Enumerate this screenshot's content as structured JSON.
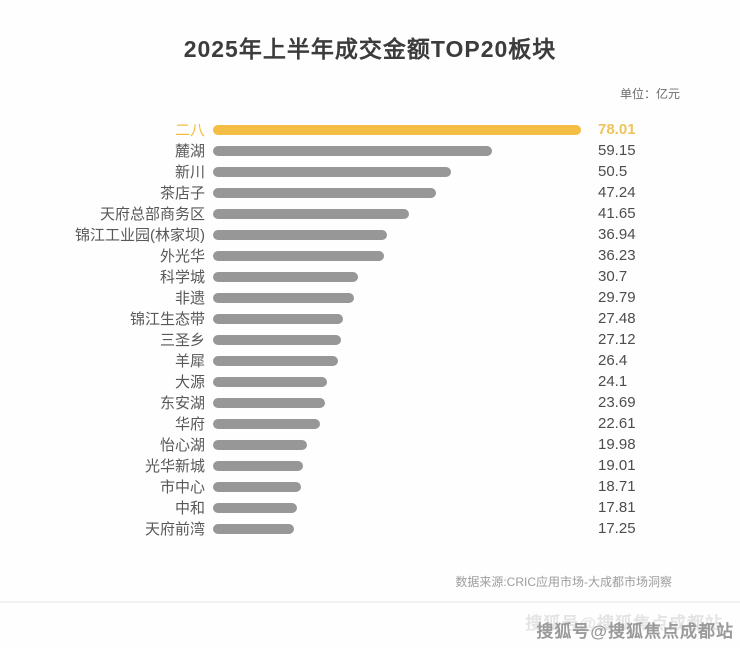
{
  "page": {
    "title": "2025年上半年成交金额TOP20板块",
    "unit_label": "单位：亿元",
    "source": "数据来源:CRIC应用市场-大成都市场洞察",
    "watermark": "搜狐号@搜狐焦点成都站"
  },
  "colors": {
    "bar": "#979797",
    "highlight": "#F4BE44",
    "highlight_value": "#EFC45C"
  },
  "chart_data": {
    "type": "bar",
    "orientation": "horizontal",
    "title": "2025年上半年成交金额TOP20板块",
    "unit": "亿元",
    "sorted": "descending",
    "xlim": [
      0,
      80
    ],
    "grid": false,
    "legend": "none",
    "highlight_index": 0,
    "categories": [
      "二八",
      "麓湖",
      "新川",
      "茶店子",
      "天府总部商务区",
      "锦江工业园(林家坝)",
      "外光华",
      "科学城",
      "非遗",
      "锦江生态带",
      "三圣乡",
      "羊犀",
      "大源",
      "东安湖",
      "华府",
      "怡心湖",
      "光华新城",
      "市中心",
      "中和",
      "天府前湾"
    ],
    "values": [
      78.01,
      59.15,
      50.5,
      47.24,
      41.65,
      36.94,
      36.23,
      30.7,
      29.79,
      27.48,
      27.12,
      26.4,
      24.1,
      23.69,
      22.61,
      19.98,
      19.01,
      18.71,
      17.81,
      17.25
    ]
  }
}
